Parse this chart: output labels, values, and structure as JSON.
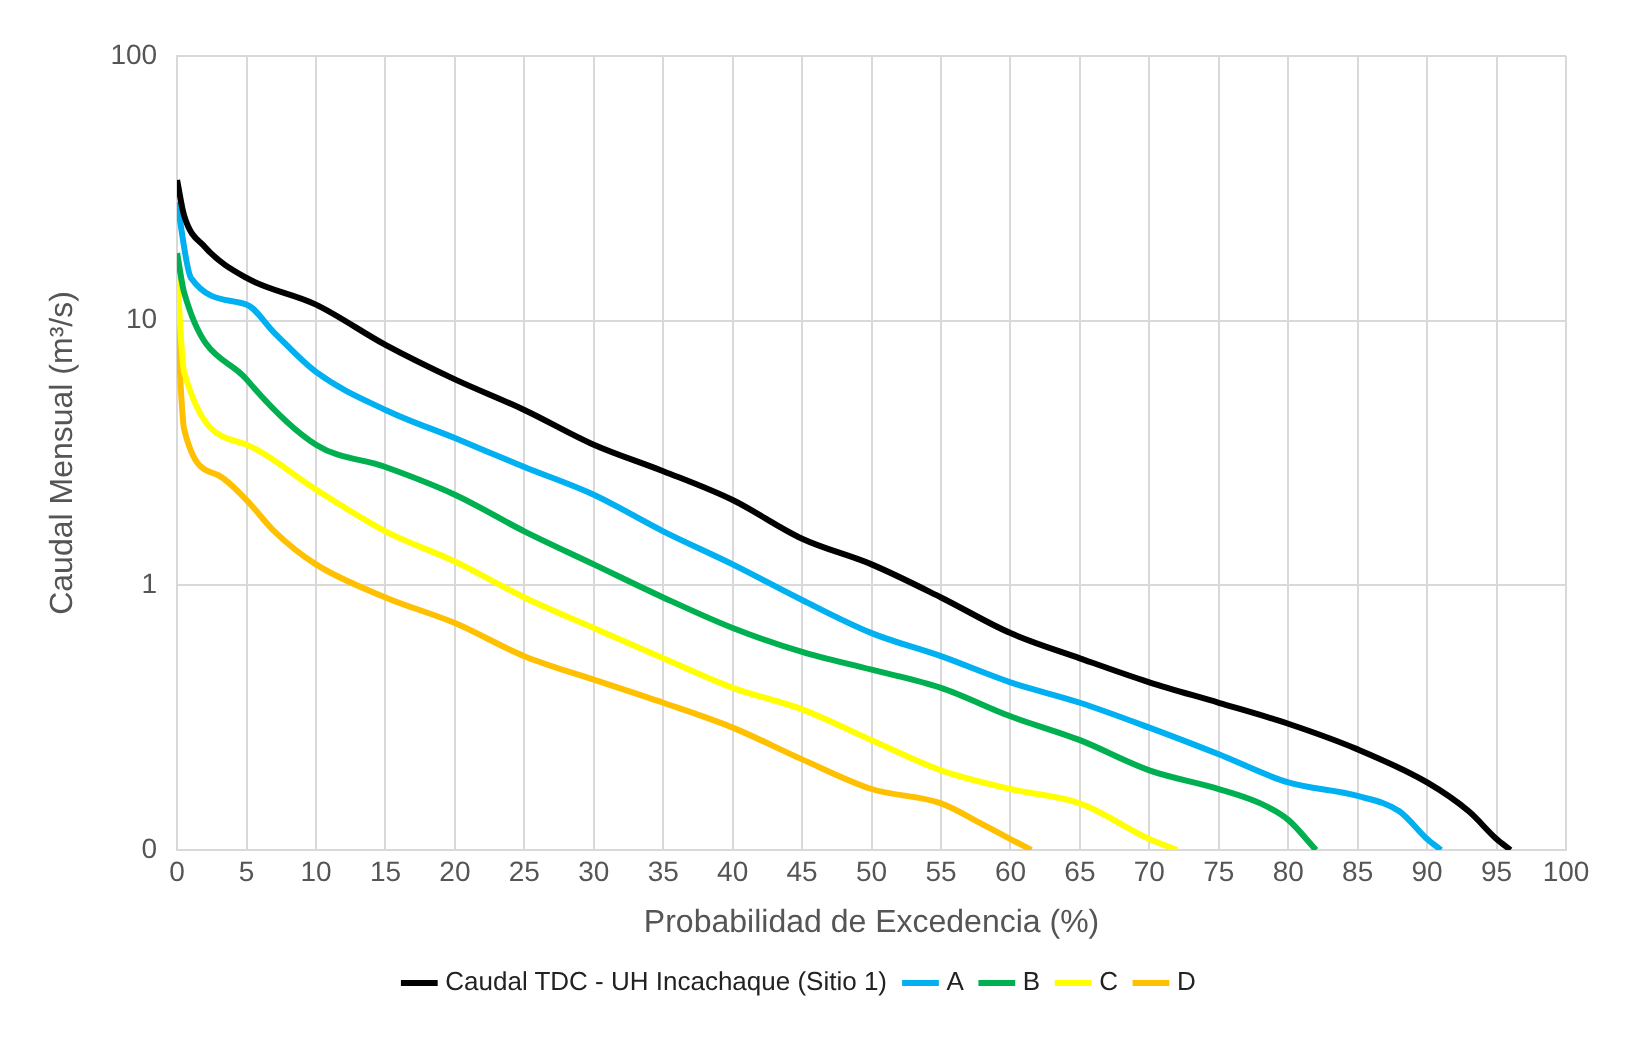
{
  "chart_data": {
    "type": "line",
    "xlabel": "Probabilidad de Excedencia (%)",
    "ylabel": "Caudal Mensual (m³/s)",
    "log": "y",
    "grid": true,
    "legend": "bottom",
    "marker": "none",
    "line_style": "solid",
    "xlim": [
      0,
      100
    ],
    "xticks": [
      0,
      5,
      10,
      15,
      20,
      25,
      30,
      35,
      40,
      45,
      50,
      55,
      60,
      65,
      70,
      75,
      80,
      85,
      90,
      95,
      100
    ],
    "ylim": [
      0.1,
      100
    ],
    "yticks": [
      {
        "value": 0.1,
        "label": "0"
      },
      1,
      10,
      100
    ],
    "series": [
      {
        "name": "Caudal TDC - UH Incachaque (Sitio 1)",
        "color": "#000000",
        "x": [
          0,
          0.5,
          2,
          5,
          10,
          15,
          20,
          25,
          30,
          35,
          40,
          45,
          50,
          55,
          60,
          65,
          70,
          75,
          80,
          85,
          90,
          93,
          95,
          96
        ],
        "values": [
          34,
          25,
          19,
          14.5,
          11.5,
          8.1,
          6,
          4.6,
          3.4,
          2.7,
          2.1,
          1.5,
          1.2,
          0.9,
          0.66,
          0.53,
          0.43,
          0.36,
          0.3,
          0.24,
          0.18,
          0.14,
          0.11,
          0.1
        ]
      },
      {
        "name": "A",
        "color": "#00b0f0",
        "x": [
          0,
          1,
          5,
          7,
          10,
          15,
          20,
          25,
          30,
          35,
          40,
          45,
          50,
          55,
          60,
          65,
          70,
          75,
          80,
          85,
          88,
          90,
          91
        ],
        "values": [
          28,
          14.5,
          11.5,
          9,
          6.4,
          4.6,
          3.6,
          2.8,
          2.2,
          1.6,
          1.2,
          0.88,
          0.66,
          0.54,
          0.43,
          0.36,
          0.29,
          0.23,
          0.18,
          0.16,
          0.14,
          0.11,
          0.1
        ]
      },
      {
        "name": "B",
        "color": "#00b050",
        "x": [
          0,
          0.5,
          5,
          10,
          15,
          20,
          25,
          30,
          35,
          40,
          45,
          50,
          55,
          60,
          65,
          70,
          75,
          78,
          80,
          82
        ],
        "values": [
          18,
          12.8,
          6,
          3.4,
          2.8,
          2.2,
          1.6,
          1.2,
          0.9,
          0.69,
          0.56,
          0.48,
          0.41,
          0.32,
          0.26,
          0.2,
          0.17,
          0.15,
          0.13,
          0.1
        ]
      },
      {
        "name": "C",
        "color": "#ffff00",
        "x": [
          0,
          0.5,
          5,
          10,
          15,
          20,
          25,
          30,
          35,
          40,
          45,
          50,
          55,
          60,
          65,
          70,
          72
        ],
        "values": [
          15,
          6.4,
          3.4,
          2.3,
          1.6,
          1.23,
          0.9,
          0.69,
          0.53,
          0.41,
          0.34,
          0.26,
          0.2,
          0.17,
          0.15,
          0.11,
          0.1
        ]
      },
      {
        "name": "D",
        "color": "#ffc000",
        "x": [
          0,
          0.5,
          3,
          5,
          7,
          10,
          15,
          20,
          25,
          30,
          35,
          40,
          45,
          50,
          55,
          58,
          60,
          61.5
        ],
        "values": [
          10,
          3.9,
          2.6,
          2.1,
          1.6,
          1.2,
          0.9,
          0.72,
          0.54,
          0.44,
          0.36,
          0.29,
          0.22,
          0.17,
          0.15,
          0.125,
          0.11,
          0.1
        ]
      }
    ]
  }
}
